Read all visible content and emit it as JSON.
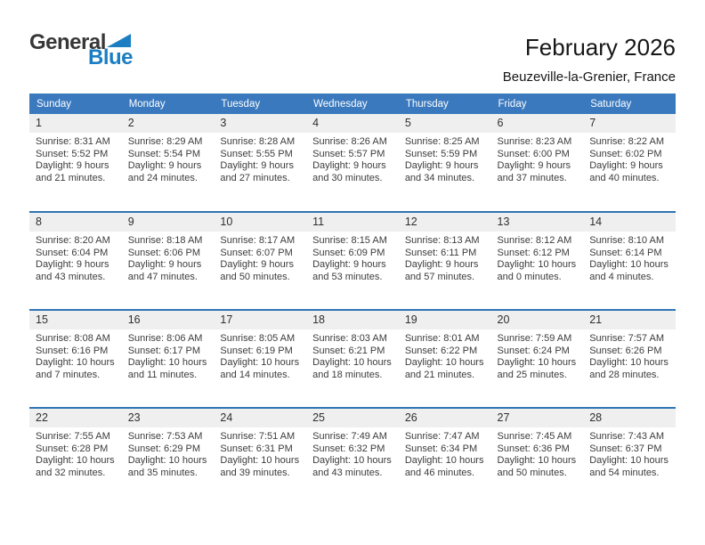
{
  "logo": {
    "general": "General",
    "blue": "Blue"
  },
  "header": {
    "title": "February 2026",
    "subtitle": "Beuzeville-la-Grenier, France"
  },
  "colors": {
    "header_bg": "#3a79be",
    "week_separator": "#2e74b5",
    "day_strip_bg": "#efefef",
    "logo_blue": "#1c7ec2"
  },
  "calendar": {
    "weekdays": [
      "Sunday",
      "Monday",
      "Tuesday",
      "Wednesday",
      "Thursday",
      "Friday",
      "Saturday"
    ],
    "weeks": [
      [
        {
          "day": "1",
          "sunrise": "Sunrise: 8:31 AM",
          "sunset": "Sunset: 5:52 PM",
          "daylight": "Daylight: 9 hours and 21 minutes."
        },
        {
          "day": "2",
          "sunrise": "Sunrise: 8:29 AM",
          "sunset": "Sunset: 5:54 PM",
          "daylight": "Daylight: 9 hours and 24 minutes."
        },
        {
          "day": "3",
          "sunrise": "Sunrise: 8:28 AM",
          "sunset": "Sunset: 5:55 PM",
          "daylight": "Daylight: 9 hours and 27 minutes."
        },
        {
          "day": "4",
          "sunrise": "Sunrise: 8:26 AM",
          "sunset": "Sunset: 5:57 PM",
          "daylight": "Daylight: 9 hours and 30 minutes."
        },
        {
          "day": "5",
          "sunrise": "Sunrise: 8:25 AM",
          "sunset": "Sunset: 5:59 PM",
          "daylight": "Daylight: 9 hours and 34 minutes."
        },
        {
          "day": "6",
          "sunrise": "Sunrise: 8:23 AM",
          "sunset": "Sunset: 6:00 PM",
          "daylight": "Daylight: 9 hours and 37 minutes."
        },
        {
          "day": "7",
          "sunrise": "Sunrise: 8:22 AM",
          "sunset": "Sunset: 6:02 PM",
          "daylight": "Daylight: 9 hours and 40 minutes."
        }
      ],
      [
        {
          "day": "8",
          "sunrise": "Sunrise: 8:20 AM",
          "sunset": "Sunset: 6:04 PM",
          "daylight": "Daylight: 9 hours and 43 minutes."
        },
        {
          "day": "9",
          "sunrise": "Sunrise: 8:18 AM",
          "sunset": "Sunset: 6:06 PM",
          "daylight": "Daylight: 9 hours and 47 minutes."
        },
        {
          "day": "10",
          "sunrise": "Sunrise: 8:17 AM",
          "sunset": "Sunset: 6:07 PM",
          "daylight": "Daylight: 9 hours and 50 minutes."
        },
        {
          "day": "11",
          "sunrise": "Sunrise: 8:15 AM",
          "sunset": "Sunset: 6:09 PM",
          "daylight": "Daylight: 9 hours and 53 minutes."
        },
        {
          "day": "12",
          "sunrise": "Sunrise: 8:13 AM",
          "sunset": "Sunset: 6:11 PM",
          "daylight": "Daylight: 9 hours and 57 minutes."
        },
        {
          "day": "13",
          "sunrise": "Sunrise: 8:12 AM",
          "sunset": "Sunset: 6:12 PM",
          "daylight": "Daylight: 10 hours and 0 minutes."
        },
        {
          "day": "14",
          "sunrise": "Sunrise: 8:10 AM",
          "sunset": "Sunset: 6:14 PM",
          "daylight": "Daylight: 10 hours and 4 minutes."
        }
      ],
      [
        {
          "day": "15",
          "sunrise": "Sunrise: 8:08 AM",
          "sunset": "Sunset: 6:16 PM",
          "daylight": "Daylight: 10 hours and 7 minutes."
        },
        {
          "day": "16",
          "sunrise": "Sunrise: 8:06 AM",
          "sunset": "Sunset: 6:17 PM",
          "daylight": "Daylight: 10 hours and 11 minutes."
        },
        {
          "day": "17",
          "sunrise": "Sunrise: 8:05 AM",
          "sunset": "Sunset: 6:19 PM",
          "daylight": "Daylight: 10 hours and 14 minutes."
        },
        {
          "day": "18",
          "sunrise": "Sunrise: 8:03 AM",
          "sunset": "Sunset: 6:21 PM",
          "daylight": "Daylight: 10 hours and 18 minutes."
        },
        {
          "day": "19",
          "sunrise": "Sunrise: 8:01 AM",
          "sunset": "Sunset: 6:22 PM",
          "daylight": "Daylight: 10 hours and 21 minutes."
        },
        {
          "day": "20",
          "sunrise": "Sunrise: 7:59 AM",
          "sunset": "Sunset: 6:24 PM",
          "daylight": "Daylight: 10 hours and 25 minutes."
        },
        {
          "day": "21",
          "sunrise": "Sunrise: 7:57 AM",
          "sunset": "Sunset: 6:26 PM",
          "daylight": "Daylight: 10 hours and 28 minutes."
        }
      ],
      [
        {
          "day": "22",
          "sunrise": "Sunrise: 7:55 AM",
          "sunset": "Sunset: 6:28 PM",
          "daylight": "Daylight: 10 hours and 32 minutes."
        },
        {
          "day": "23",
          "sunrise": "Sunrise: 7:53 AM",
          "sunset": "Sunset: 6:29 PM",
          "daylight": "Daylight: 10 hours and 35 minutes."
        },
        {
          "day": "24",
          "sunrise": "Sunrise: 7:51 AM",
          "sunset": "Sunset: 6:31 PM",
          "daylight": "Daylight: 10 hours and 39 minutes."
        },
        {
          "day": "25",
          "sunrise": "Sunrise: 7:49 AM",
          "sunset": "Sunset: 6:32 PM",
          "daylight": "Daylight: 10 hours and 43 minutes."
        },
        {
          "day": "26",
          "sunrise": "Sunrise: 7:47 AM",
          "sunset": "Sunset: 6:34 PM",
          "daylight": "Daylight: 10 hours and 46 minutes."
        },
        {
          "day": "27",
          "sunrise": "Sunrise: 7:45 AM",
          "sunset": "Sunset: 6:36 PM",
          "daylight": "Daylight: 10 hours and 50 minutes."
        },
        {
          "day": "28",
          "sunrise": "Sunrise: 7:43 AM",
          "sunset": "Sunset: 6:37 PM",
          "daylight": "Daylight: 10 hours and 54 minutes."
        }
      ]
    ]
  }
}
